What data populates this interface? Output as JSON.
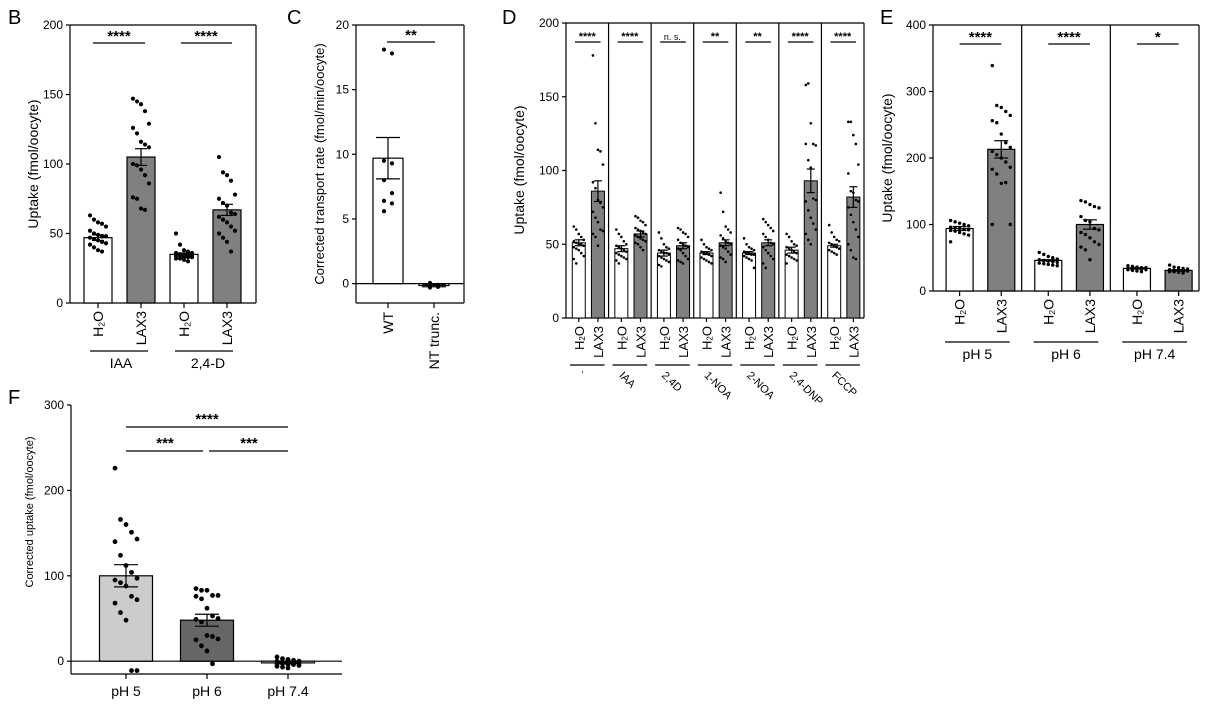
{
  "colors": {
    "white_bar": "#ffffff",
    "gray_bar": "#808080",
    "light_gray_bar": "#cccccc",
    "dark_gray_bar": "#666666",
    "axis": "#000000"
  },
  "chart_data": [
    {
      "panel": "B",
      "type": "bar",
      "ylabel": "Uptake (fmol/oocyte)",
      "ylim": [
        0,
        200
      ],
      "yticks": [
        "0",
        "50",
        "100",
        "150",
        "200"
      ],
      "categories": [
        "H2O",
        "LAX3",
        "H2O",
        "LAX3"
      ],
      "groups": [
        {
          "label": "IAA"
        },
        {
          "label": "2,4-D"
        }
      ],
      "values": [
        47,
        105,
        35,
        67
      ],
      "sem": [
        2,
        6,
        1,
        4
      ],
      "fills": [
        "white",
        "gray",
        "white",
        "gray"
      ],
      "points": [
        [
          63,
          60,
          58,
          57,
          55,
          52,
          50,
          49,
          48,
          48,
          47,
          46,
          45,
          44,
          43,
          42,
          40,
          38,
          37
        ],
        [
          147,
          145,
          143,
          138,
          129,
          126,
          122,
          116,
          114,
          112,
          100,
          99,
          96,
          92,
          86,
          76,
          75,
          68,
          67
        ],
        [
          50,
          42,
          38,
          37,
          36,
          36,
          35,
          35,
          35,
          34,
          34,
          34,
          33,
          33,
          33,
          32,
          32,
          31,
          30
        ],
        [
          105,
          94,
          92,
          88,
          78,
          75,
          72,
          70,
          65,
          64,
          62,
          60,
          58,
          55,
          52,
          50,
          47,
          44,
          37
        ]
      ],
      "significance": [
        {
          "label": "****"
        },
        {
          "label": "****"
        }
      ]
    },
    {
      "panel": "C",
      "type": "bar",
      "ylabel": "Corrected transport rate (fmol/min/oocyte)",
      "ylim": [
        -1.5,
        20
      ],
      "yticks": [
        "0",
        "5",
        "10",
        "15",
        "20"
      ],
      "categories": [
        "WT",
        "NT trunc."
      ],
      "values": [
        9.7,
        -0.15
      ],
      "sem": [
        1.6,
        0.1
      ],
      "fills": [
        "white",
        "white"
      ],
      "points": [
        [
          18.1,
          17.8,
          9.5,
          9.3,
          8.0,
          7.0,
          6.4,
          6.2,
          5.6
        ],
        [
          0.05,
          -0.1,
          -0.3,
          -0.25,
          -0.2
        ]
      ],
      "significance": [
        {
          "label": "**"
        }
      ]
    },
    {
      "panel": "D",
      "type": "bar",
      "ylabel": "Uptake (fmol/oocyte)",
      "ylim": [
        0,
        200
      ],
      "yticks": [
        "0",
        "50",
        "100",
        "150",
        "200"
      ],
      "groups": [
        {
          "label": "`",
          "sig": "****",
          "h2o": 51,
          "lax3": 86,
          "h2o_sem": 2,
          "lax3_sem": 7,
          "h2o_pts": [
            62,
            60,
            57,
            55,
            53,
            52,
            51,
            50,
            50,
            49,
            48,
            47,
            46,
            44,
            42,
            40,
            37
          ],
          "lax3_pts": [
            178,
            132,
            114,
            113,
            104,
            92,
            88,
            80,
            78,
            75,
            72,
            68,
            65,
            60,
            59,
            57,
            55,
            49
          ]
        },
        {
          "label": "IAA",
          "sig": "****",
          "h2o": 47,
          "lax3": 57,
          "h2o_sem": 2,
          "lax3_sem": 2,
          "h2o_pts": [
            60,
            57,
            55,
            52,
            50,
            49,
            48,
            47,
            46,
            45,
            44,
            43,
            42,
            41,
            40,
            39,
            37
          ],
          "lax3_pts": [
            69,
            68,
            66,
            65,
            63,
            61,
            60,
            59,
            58,
            57,
            56,
            55,
            54,
            53,
            52,
            51,
            50,
            48,
            46
          ]
        },
        {
          "label": "2,4D",
          "sig": "n. s.",
          "h2o": 44,
          "lax3": 49,
          "h2o_sem": 2,
          "lax3_sem": 2,
          "h2o_pts": [
            58,
            54,
            50,
            48,
            47,
            46,
            45,
            44,
            44,
            43,
            42,
            41,
            40,
            39,
            38,
            36,
            35
          ],
          "lax3_pts": [
            61,
            60,
            58,
            57,
            55,
            53,
            51,
            50,
            49,
            48,
            47,
            46,
            44,
            42,
            40,
            39,
            38,
            37
          ]
        },
        {
          "label": "1-NOA",
          "sig": "**",
          "h2o": 44,
          "lax3": 51,
          "h2o_sem": 1,
          "lax3_sem": 2,
          "h2o_pts": [
            53,
            50,
            48,
            47,
            46,
            45,
            44,
            44,
            43,
            42,
            41,
            40,
            39,
            38,
            37
          ],
          "lax3_pts": [
            85,
            72,
            62,
            60,
            58,
            56,
            54,
            52,
            51,
            50,
            49,
            48,
            47,
            45,
            43,
            41,
            40,
            38
          ]
        },
        {
          "label": "2-NOA",
          "sig": "**",
          "h2o": 44,
          "lax3": 51,
          "h2o_sem": 1,
          "lax3_sem": 2,
          "h2o_pts": [
            54,
            50,
            48,
            47,
            46,
            45,
            44,
            44,
            43,
            43,
            42,
            41,
            40,
            39,
            34
          ],
          "lax3_pts": [
            67,
            65,
            63,
            61,
            59,
            57,
            55,
            53,
            51,
            50,
            48,
            46,
            44,
            42,
            40,
            37,
            34
          ]
        },
        {
          "label": "2,4-DNP",
          "sig": "****",
          "h2o": 46,
          "lax3": 93,
          "h2o_sem": 2,
          "lax3_sem": 8,
          "h2o_pts": [
            57,
            55,
            52,
            50,
            49,
            48,
            47,
            46,
            45,
            44,
            43,
            42,
            41,
            40,
            39,
            37
          ],
          "lax3_pts": [
            158,
            159,
            132,
            118,
            117,
            118,
            107,
            102,
            81,
            80,
            79,
            73,
            68,
            64,
            60,
            57,
            53,
            50
          ]
        },
        {
          "label": "FCCP",
          "sig": "****",
          "h2o": 49,
          "lax3": 82,
          "h2o_sem": 1,
          "lax3_sem": 7,
          "h2o_pts": [
            63,
            58,
            55,
            53,
            52,
            51,
            50,
            49,
            48,
            47,
            46,
            45,
            44,
            43
          ],
          "lax3_pts": [
            133,
            133,
            124,
            118,
            104,
            98,
            86,
            85,
            80,
            79,
            75,
            70,
            65,
            60,
            55,
            50,
            46,
            41,
            40
          ]
        }
      ],
      "categories": [
        "H2O",
        "LAX3"
      ]
    },
    {
      "panel": "E",
      "type": "bar",
      "ylabel": "Uptake (fmol/oocyte)",
      "ylim": [
        0,
        400
      ],
      "yticks": [
        "0",
        "100",
        "200",
        "300",
        "400"
      ],
      "categories": [
        "H2O",
        "LAX3"
      ],
      "groups": [
        {
          "label": "pH 5",
          "sig": "****",
          "h2o": 94,
          "lax3": 213,
          "h2o_sem": 3,
          "lax3_sem": 13,
          "h2o_pts": [
            106,
            104,
            102,
            100,
            98,
            96,
            95,
            94,
            93,
            92,
            91,
            90,
            88,
            86,
            84,
            74
          ],
          "lax3_pts": [
            339,
            279,
            276,
            270,
            264,
            256,
            253,
            236,
            223,
            216,
            210,
            205,
            200,
            194,
            186,
            183,
            176,
            162,
            163,
            100,
            100
          ]
        },
        {
          "label": "pH 6",
          "sig": "****",
          "h2o": 46,
          "lax3": 100,
          "h2o_sem": 1,
          "lax3_sem": 7,
          "h2o_pts": [
            58,
            55,
            52,
            50,
            48,
            47,
            46,
            45,
            44,
            43,
            42,
            41,
            40,
            39,
            38
          ],
          "lax3_pts": [
            136,
            134,
            130,
            127,
            125,
            112,
            106,
            104,
            94,
            92,
            88,
            85,
            80,
            74,
            70,
            66,
            62,
            47
          ]
        },
        {
          "label": "pH 7.4",
          "sig": "*",
          "h2o": 34,
          "lax3": 31,
          "h2o_sem": 1,
          "lax3_sem": 1,
          "h2o_pts": [
            38,
            37,
            36,
            35,
            35,
            34,
            34,
            33,
            33,
            32,
            32,
            31,
            30,
            29
          ],
          "lax3_pts": [
            39,
            36,
            35,
            34,
            33,
            32,
            31,
            31,
            30,
            30,
            29,
            29,
            28,
            27
          ]
        }
      ]
    },
    {
      "panel": "F",
      "type": "bar",
      "ylabel": "Corrected uptake (fmol/oocyte)",
      "ylim": [
        -15,
        300
      ],
      "yticks": [
        "0",
        "100",
        "200",
        "300"
      ],
      "categories": [
        "pH 5",
        "pH 6",
        "pH 7.4"
      ],
      "values": [
        100,
        48,
        -2
      ],
      "sem": [
        13,
        7,
        1
      ],
      "fills": [
        "lightgray",
        "darkgray",
        "white"
      ],
      "points": [
        [
          226,
          166,
          160,
          151,
          143,
          140,
          124,
          112,
          104,
          97,
          95,
          92,
          88,
          76,
          72,
          68,
          57,
          48,
          -11,
          -11
        ],
        [
          85,
          83,
          83,
          77,
          77,
          76,
          73,
          62,
          53,
          50,
          49,
          46,
          30,
          29,
          26,
          25,
          18,
          12,
          -3
        ],
        [
          5,
          3,
          2,
          1,
          0,
          0,
          -1,
          -1,
          -2,
          -2,
          -3,
          -3,
          -4,
          -4,
          -5,
          -6,
          -7,
          -8
        ]
      ],
      "significance": [
        {
          "label": "****"
        },
        {
          "label": "***"
        },
        {
          "label": "***"
        }
      ]
    }
  ],
  "panel_letters": [
    "B",
    "C",
    "D",
    "E",
    "F"
  ],
  "labels": {
    "h2o_main": "H",
    "h2o_sub": "2",
    "h2o_end": "O",
    "lax3": "LAX3"
  }
}
